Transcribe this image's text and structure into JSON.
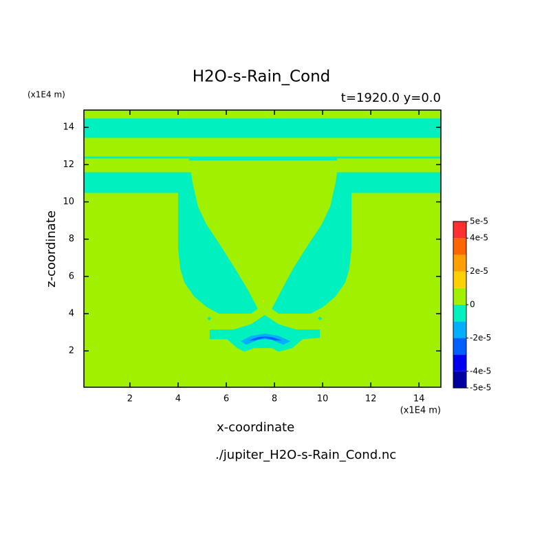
{
  "chart_data": {
    "type": "contour",
    "title": "H2O-s-Rain_Cond",
    "subtitle": "t=1920.0 y=0.0",
    "x_label": "x-coordinate",
    "y_label": "z-coordinate",
    "x_unit": "(x1E4 m)",
    "y_unit": "(x1E4 m)",
    "source": "./jupiter_H2O-s-Rain_Cond.nc",
    "xlim": [
      0.09,
      14.91
    ],
    "ylim": [
      0.05,
      14.93
    ],
    "xticks": [
      2,
      4,
      6,
      8,
      10,
      12,
      14
    ],
    "yticks": [
      2,
      4,
      6,
      8,
      10,
      12,
      14
    ],
    "fill_range": [
      0,
      1e-05
    ],
    "regions": [
      {
        "range": [
          -1e-05,
          0
        ],
        "points": [
          [
            0.09,
            14.48
          ],
          [
            14.91,
            14.48
          ],
          [
            14.91,
            13.44
          ],
          [
            0.09,
            13.44
          ]
        ]
      },
      {
        "range": [
          -1e-05,
          0
        ],
        "points": [
          [
            0.09,
            12.44
          ],
          [
            14.91,
            12.44
          ],
          [
            14.91,
            12.33
          ],
          [
            10.6,
            12.33
          ],
          [
            10.6,
            12.22
          ],
          [
            4.46,
            12.22
          ],
          [
            4.46,
            12.33
          ],
          [
            0.09,
            12.33
          ]
        ]
      },
      {
        "range": [
          -1e-05,
          0
        ],
        "points": [
          [
            0.09,
            11.59
          ],
          [
            4.54,
            11.59
          ],
          [
            4.6,
            11.04
          ],
          [
            4.83,
            9.74
          ],
          [
            5.17,
            8.81
          ],
          [
            5.74,
            7.7
          ],
          [
            6.37,
            6.41
          ],
          [
            6.89,
            5.3
          ],
          [
            7.31,
            4.26
          ],
          [
            7.03,
            4.0
          ],
          [
            5.69,
            4.0
          ],
          [
            5.17,
            4.37
          ],
          [
            4.66,
            4.93
          ],
          [
            4.26,
            5.67
          ],
          [
            4.09,
            6.41
          ],
          [
            4.0,
            7.52
          ],
          [
            4.0,
            10.48
          ],
          [
            0.09,
            10.48
          ]
        ]
      },
      {
        "range": [
          -1e-05,
          0
        ],
        "points": [
          [
            14.91,
            11.59
          ],
          [
            10.6,
            11.59
          ],
          [
            10.54,
            11.04
          ],
          [
            10.31,
            9.74
          ],
          [
            9.97,
            8.81
          ],
          [
            9.4,
            7.7
          ],
          [
            8.77,
            6.41
          ],
          [
            8.31,
            5.3
          ],
          [
            7.89,
            4.26
          ],
          [
            8.17,
            4.0
          ],
          [
            9.51,
            4.0
          ],
          [
            10.03,
            4.37
          ],
          [
            10.54,
            4.93
          ],
          [
            10.94,
            5.67
          ],
          [
            11.11,
            6.41
          ],
          [
            11.2,
            7.52
          ],
          [
            11.2,
            10.48
          ],
          [
            14.91,
            10.48
          ]
        ]
      },
      {
        "range": [
          -1e-05,
          0
        ],
        "points": [
          [
            5.2,
            3.74
          ],
          [
            5.29,
            3.85
          ],
          [
            5.38,
            3.74
          ],
          [
            5.29,
            3.63
          ]
        ]
      },
      {
        "range": [
          -1e-05,
          0
        ],
        "points": [
          [
            9.8,
            3.74
          ],
          [
            9.89,
            3.85
          ],
          [
            9.98,
            3.74
          ],
          [
            9.89,
            3.63
          ]
        ]
      },
      {
        "range": [
          -1e-05,
          0
        ],
        "points": [
          [
            5.31,
            3.15
          ],
          [
            6.31,
            3.15
          ],
          [
            7.03,
            3.44
          ],
          [
            7.6,
            3.93
          ],
          [
            8.17,
            3.44
          ],
          [
            8.89,
            3.15
          ],
          [
            9.89,
            3.15
          ],
          [
            9.89,
            2.7
          ],
          [
            9.17,
            2.63
          ],
          [
            8.74,
            2.15
          ],
          [
            8.17,
            1.96
          ],
          [
            7.89,
            2.15
          ],
          [
            7.17,
            2.15
          ],
          [
            6.74,
            1.96
          ],
          [
            6.46,
            2.15
          ],
          [
            6.03,
            2.63
          ],
          [
            5.31,
            2.63
          ]
        ]
      },
      {
        "range": [
          -2e-05,
          -1e-05
        ],
        "points": [
          [
            6.6,
            2.52
          ],
          [
            7.03,
            2.81
          ],
          [
            7.6,
            2.93
          ],
          [
            8.17,
            2.81
          ],
          [
            8.66,
            2.52
          ],
          [
            8.37,
            2.33
          ],
          [
            7.89,
            2.59
          ],
          [
            7.6,
            2.63
          ],
          [
            7.31,
            2.59
          ],
          [
            6.83,
            2.33
          ]
        ]
      },
      {
        "range": [
          -3e-05,
          -2e-05
        ],
        "points": [
          [
            6.94,
            2.56
          ],
          [
            7.31,
            2.74
          ],
          [
            7.6,
            2.78
          ],
          [
            7.89,
            2.74
          ],
          [
            8.31,
            2.56
          ],
          [
            8.03,
            2.56
          ],
          [
            7.6,
            2.7
          ],
          [
            7.17,
            2.56
          ]
        ]
      },
      {
        "range": [
          1e-05,
          2e-05
        ],
        "points": [
          [
            7.5,
            4.67
          ],
          [
            7.54,
            4.74
          ],
          [
            7.58,
            4.67
          ],
          [
            7.54,
            4.6
          ]
        ]
      }
    ],
    "colorbar": {
      "levels": [
        -5e-05,
        -4e-05,
        -3e-05,
        -2e-05,
        -1e-05,
        0,
        1e-05,
        2e-05,
        3e-05,
        4e-05,
        5e-05
      ],
      "colors": [
        "#0000a0",
        "#0000f0",
        "#0060ff",
        "#00b0ff",
        "#00f0c0",
        "#a0f000",
        "#ffd000",
        "#ffa000",
        "#ff6600",
        "#ff3030"
      ],
      "ticks": [
        {
          "value": 5e-05,
          "label": "5e-5"
        },
        {
          "value": 4e-05,
          "label": "4e-5"
        },
        {
          "value": 2e-05,
          "label": "2e-5"
        },
        0,
        {
          "value": -2e-05,
          "label": "-2e-5"
        },
        {
          "value": -4e-05,
          "label": "-4e-5"
        },
        {
          "value": -5e-05,
          "label": "-5e-5"
        }
      ]
    }
  }
}
